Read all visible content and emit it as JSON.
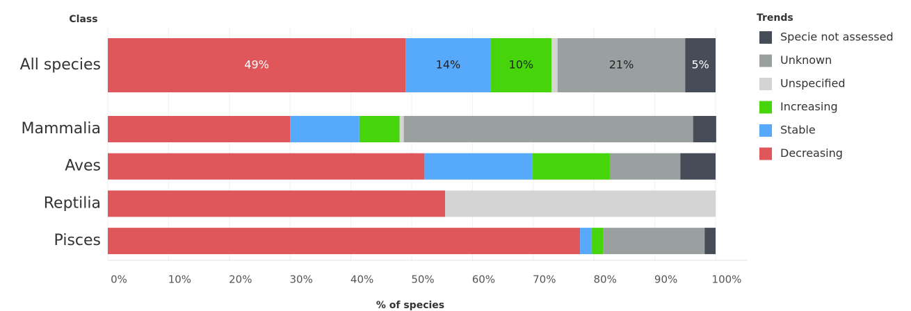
{
  "chart_data": {
    "type": "stacked_barh",
    "y_axis_label": "Class",
    "x_axis_label": "% of species",
    "legend_title": "Trends",
    "categories": [
      "All species",
      "Mammalia",
      "Aves",
      "Reptilia",
      "Pisces"
    ],
    "series": [
      {
        "name": "Decreasing",
        "color": "#e0575b",
        "values": [
          49,
          30,
          52.1,
          55.5,
          77.7
        ],
        "value_labels": [
          "49%",
          null,
          null,
          null,
          null
        ]
      },
      {
        "name": "Stable",
        "color": "#57a9fb",
        "values": [
          14,
          11.4,
          17.8,
          0,
          1.9
        ],
        "value_labels": [
          "14%",
          null,
          null,
          null,
          null
        ]
      },
      {
        "name": "Increasing",
        "color": "#46d50b",
        "values": [
          10,
          6.6,
          12.7,
          0,
          1.9
        ],
        "value_labels": [
          "10%",
          null,
          null,
          null,
          null
        ]
      },
      {
        "name": "Unspecified",
        "color": "#d4d4d4",
        "values": [
          1,
          0.7,
          0,
          44.5,
          0
        ]
      },
      {
        "name": "Unknown",
        "color": "#9aa0a0",
        "values": [
          21,
          47.6,
          11.6,
          0,
          16.7
        ],
        "value_labels": [
          "21%",
          null,
          null,
          null,
          null
        ]
      },
      {
        "name": "Specie not assessed",
        "color": "#464c58",
        "values": [
          5,
          3.8,
          5.8,
          0,
          1.8
        ],
        "value_labels": [
          "5%",
          null,
          null,
          null,
          null
        ]
      }
    ],
    "xlim": [
      0,
      100
    ],
    "xticks": [
      {
        "value": 0,
        "label": "0%"
      },
      {
        "value": 10,
        "label": "10%"
      },
      {
        "value": 20,
        "label": "20%"
      },
      {
        "value": 30,
        "label": "30%"
      },
      {
        "value": 40,
        "label": "40%"
      },
      {
        "value": 50,
        "label": "50%"
      },
      {
        "value": 60,
        "label": "60%"
      },
      {
        "value": 70,
        "label": "70%"
      },
      {
        "value": 80,
        "label": "80%"
      },
      {
        "value": 90,
        "label": "90%"
      },
      {
        "value": 100,
        "label": "100%"
      }
    ],
    "grid": true,
    "legend": "right"
  }
}
